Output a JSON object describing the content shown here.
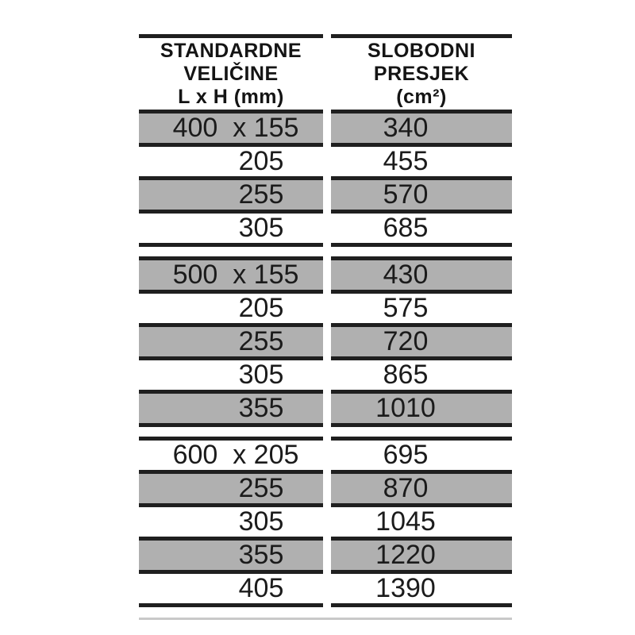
{
  "table": {
    "header": {
      "col_size": {
        "line1": "STANDARDNE",
        "line2": "VELIČINE",
        "line3": "L x H (mm)"
      },
      "col_area": {
        "line1": "SLOBODNI",
        "line2": "PRESJEK",
        "line3": "(cm²)"
      }
    },
    "groups": [
      {
        "rows": [
          {
            "size": "400  x 155",
            "area": "340"
          },
          {
            "size": "205",
            "area": "455"
          },
          {
            "size": "255",
            "area": "570"
          },
          {
            "size": "305",
            "area": "685"
          }
        ]
      },
      {
        "rows": [
          {
            "size": "500  x 155",
            "area": "430"
          },
          {
            "size": "205",
            "area": "575"
          },
          {
            "size": "255",
            "area": "720"
          },
          {
            "size": "305",
            "area": "865"
          },
          {
            "size": "355",
            "area": "1010"
          }
        ]
      },
      {
        "rows": [
          {
            "size": "600  x 205",
            "area": "695"
          },
          {
            "size": "255",
            "area": "870"
          },
          {
            "size": "305",
            "area": "1045"
          },
          {
            "size": "355",
            "area": "1220"
          },
          {
            "size": "405",
            "area": "1390"
          }
        ]
      }
    ],
    "colors": {
      "row_shaded": "#b0b0b0",
      "rule": "#1f1f1f",
      "text": "#1b1b1b",
      "faint_rule": "#c9c9c9",
      "background": "#ffffff"
    }
  },
  "chart_data": {
    "type": "table",
    "title": "",
    "columns": [
      "STANDARDNE VELIČINE L x H (mm)",
      "SLOBODNI PRESJEK (cm²)"
    ],
    "rows": [
      [
        "400 x 155",
        340
      ],
      [
        "205",
        455
      ],
      [
        "255",
        570
      ],
      [
        "305",
        685
      ],
      [
        "500 x 155",
        430
      ],
      [
        "205",
        575
      ],
      [
        "255",
        720
      ],
      [
        "305",
        865
      ],
      [
        "355",
        1010
      ],
      [
        "600 x 205",
        695
      ],
      [
        "255",
        870
      ],
      [
        "305",
        1045
      ],
      [
        "355",
        1220
      ],
      [
        "405",
        1390
      ]
    ]
  }
}
